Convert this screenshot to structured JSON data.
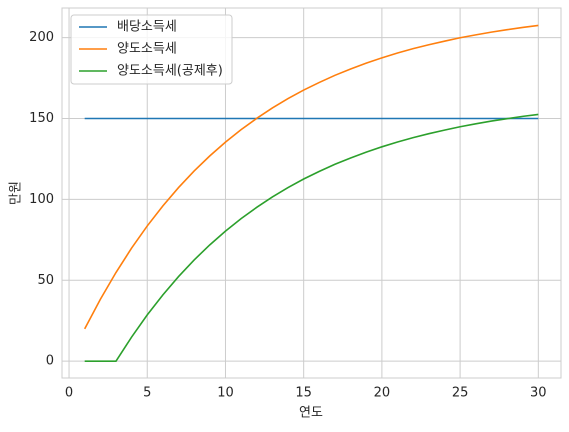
{
  "chart_data": {
    "type": "line",
    "x": [
      1,
      2,
      3,
      4,
      5,
      6,
      7,
      8,
      9,
      10,
      11,
      12,
      13,
      14,
      15,
      16,
      17,
      18,
      19,
      20,
      21,
      22,
      23,
      24,
      25,
      26,
      27,
      28,
      29,
      30
    ],
    "series": [
      {
        "name": "배당소득세",
        "color": "#1f77b4",
        "values": [
          150,
          150,
          150,
          150,
          150,
          150,
          150,
          150,
          150,
          150,
          150,
          150,
          150,
          150,
          150,
          150,
          150,
          150,
          150,
          150,
          150,
          150,
          150,
          150,
          150,
          150,
          150,
          150,
          150,
          150
        ]
      },
      {
        "name": "양도소득세",
        "color": "#ff7f0e",
        "values": [
          20,
          38.2,
          54.8,
          69.9,
          83.6,
          96.0,
          107.3,
          117.6,
          126.9,
          135.4,
          143.1,
          150.1,
          156.5,
          162.3,
          167.6,
          172.3,
          176.7,
          180.6,
          184.2,
          187.5,
          190.5,
          193.2,
          195.6,
          197.8,
          199.9,
          201.7,
          203.4,
          204.9,
          206.3,
          207.5
        ]
      },
      {
        "name": "양도소득세(공제후)",
        "color": "#2ca02c",
        "values": [
          0,
          0,
          0,
          14.9,
          28.6,
          41.0,
          52.3,
          62.6,
          71.9,
          80.4,
          88.1,
          95.1,
          101.5,
          107.3,
          112.6,
          117.3,
          121.7,
          125.6,
          129.2,
          132.5,
          135.5,
          138.2,
          140.6,
          142.8,
          144.9,
          146.7,
          148.4,
          149.9,
          151.3,
          152.5
        ]
      }
    ],
    "x_label": "연도",
    "y_label": "만원",
    "xlim": [
      -0.45,
      31.45
    ],
    "xticks": [
      0,
      5,
      10,
      15,
      20,
      25,
      30
    ],
    "ylim": [
      -10.4,
      218.3
    ],
    "yticks": [
      0,
      50,
      100,
      150,
      200
    ],
    "grid": true,
    "legend": "upper-left"
  }
}
